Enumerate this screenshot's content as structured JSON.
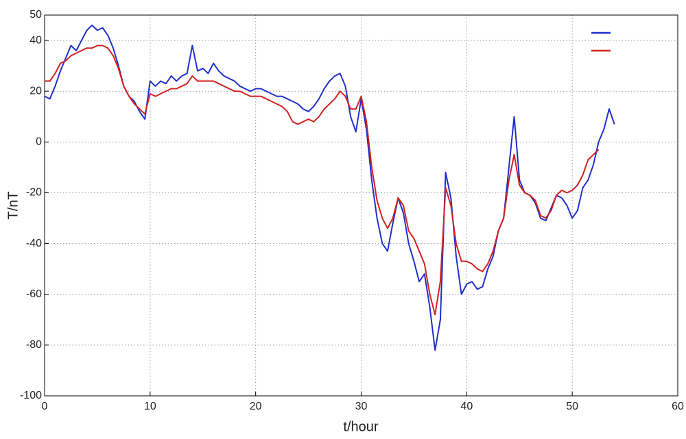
{
  "chart_data": {
    "type": "line",
    "xlabel": "t/hour",
    "ylabel": "T/nT",
    "xlim": [
      0,
      60
    ],
    "ylim": [
      -100,
      50
    ],
    "xticks": [
      0,
      10,
      20,
      30,
      40,
      50,
      60
    ],
    "yticks": [
      -100,
      -80,
      -60,
      -40,
      -20,
      0,
      20,
      40,
      50
    ],
    "grid": true,
    "legend": "upper right",
    "series": [
      {
        "color": "#1f2fcc",
        "x": [
          0,
          0.5,
          1,
          1.5,
          2,
          2.5,
          3,
          3.5,
          4,
          4.5,
          5,
          5.5,
          6,
          6.5,
          7,
          7.5,
          8,
          8.5,
          9,
          9.5,
          10,
          10.5,
          11,
          11.5,
          12,
          12.5,
          13,
          13.5,
          14,
          14.5,
          15,
          15.5,
          16,
          16.5,
          17,
          17.5,
          18,
          18.5,
          19,
          19.5,
          20,
          20.5,
          21,
          21.5,
          22,
          22.5,
          23,
          23.5,
          24,
          24.5,
          25,
          25.5,
          26,
          26.5,
          27,
          27.5,
          28,
          28.5,
          29,
          29.5,
          30,
          30.5,
          31,
          31.5,
          32,
          32.5,
          33,
          33.5,
          34,
          34.5,
          35,
          35.5,
          36,
          36.5,
          37,
          37.5,
          38,
          38.5,
          39,
          39.5,
          40,
          40.5,
          41,
          41.5,
          42,
          42.5,
          43,
          43.5,
          44,
          44.5,
          45,
          45.5,
          46,
          46.5,
          47,
          47.5,
          48,
          48.5,
          49,
          49.5,
          50,
          50.5,
          51,
          51.5,
          52,
          52.5,
          53,
          53.5,
          54
        ],
        "values": [
          18,
          17,
          22,
          28,
          33,
          38,
          36,
          40,
          44,
          46,
          44,
          45,
          42,
          37,
          30,
          22,
          18,
          16,
          12,
          9,
          24,
          22,
          24,
          23,
          26,
          24,
          26,
          27,
          38,
          28,
          29,
          27,
          31,
          28,
          26,
          25,
          24,
          22,
          21,
          20,
          21,
          21,
          20,
          19,
          18,
          18,
          17,
          16,
          15,
          13,
          12,
          14,
          17,
          21,
          24,
          26,
          27,
          22,
          10,
          4,
          17,
          5,
          -15,
          -30,
          -40,
          -43,
          -32,
          -22,
          -28,
          -40,
          -47,
          -55,
          -52,
          -65,
          -82,
          -70,
          -12,
          -22,
          -45,
          -60,
          -56,
          -55,
          -58,
          -57,
          -50,
          -45,
          -35,
          -30,
          -10,
          10,
          -15,
          -20,
          -21,
          -24,
          -30,
          -31,
          -26,
          -21,
          -22,
          -25,
          -30,
          -27,
          -18,
          -15,
          -9,
          0,
          5,
          13,
          7
        ]
      },
      {
        "color": "#d42020",
        "x": [
          0,
          0.5,
          1,
          1.5,
          2,
          2.5,
          3,
          3.5,
          4,
          4.5,
          5,
          5.5,
          6,
          6.5,
          7,
          7.5,
          8,
          8.5,
          9,
          9.5,
          10,
          10.5,
          11,
          11.5,
          12,
          12.5,
          13,
          13.5,
          14,
          14.5,
          15,
          15.5,
          16,
          16.5,
          17,
          17.5,
          18,
          18.5,
          19,
          19.5,
          20,
          20.5,
          21,
          21.5,
          22,
          22.5,
          23,
          23.5,
          24,
          24.5,
          25,
          25.5,
          26,
          26.5,
          27,
          27.5,
          28,
          28.5,
          29,
          29.5,
          30,
          30.5,
          31,
          31.5,
          32,
          32.5,
          33,
          33.5,
          34,
          34.5,
          35,
          35.5,
          36,
          36.5,
          37,
          37.5,
          38,
          38.5,
          39,
          39.5,
          40,
          40.5,
          41,
          41.5,
          42,
          42.5,
          43,
          43.5,
          44,
          44.5,
          45,
          45.5,
          46,
          46.5,
          47,
          47.5,
          48,
          48.5,
          49,
          49.5,
          50,
          50.5,
          51,
          51.5,
          52,
          52.5
        ],
        "values": [
          24,
          24,
          27,
          31,
          32,
          34,
          35,
          36,
          37,
          37,
          38,
          38,
          37,
          34,
          29,
          22,
          18,
          15,
          13,
          11,
          19,
          18,
          19,
          20,
          21,
          21,
          22,
          23,
          26,
          24,
          24,
          24,
          24,
          23,
          22,
          21,
          20,
          20,
          19,
          18,
          18,
          18,
          17,
          16,
          15,
          14,
          12,
          8,
          7,
          8,
          9,
          8,
          10,
          13,
          15,
          17,
          20,
          18,
          13,
          13,
          18,
          8,
          -10,
          -23,
          -30,
          -34,
          -30,
          -22,
          -25,
          -35,
          -38,
          -43,
          -48,
          -60,
          -68,
          -55,
          -18,
          -25,
          -40,
          -47,
          -47,
          -48,
          -50,
          -51,
          -48,
          -43,
          -35,
          -30,
          -15,
          -5,
          -17,
          -20,
          -21,
          -23,
          -29,
          -30,
          -27,
          -21,
          -19,
          -20,
          -19,
          -17,
          -13,
          -7,
          -5,
          -3
        ]
      }
    ]
  }
}
